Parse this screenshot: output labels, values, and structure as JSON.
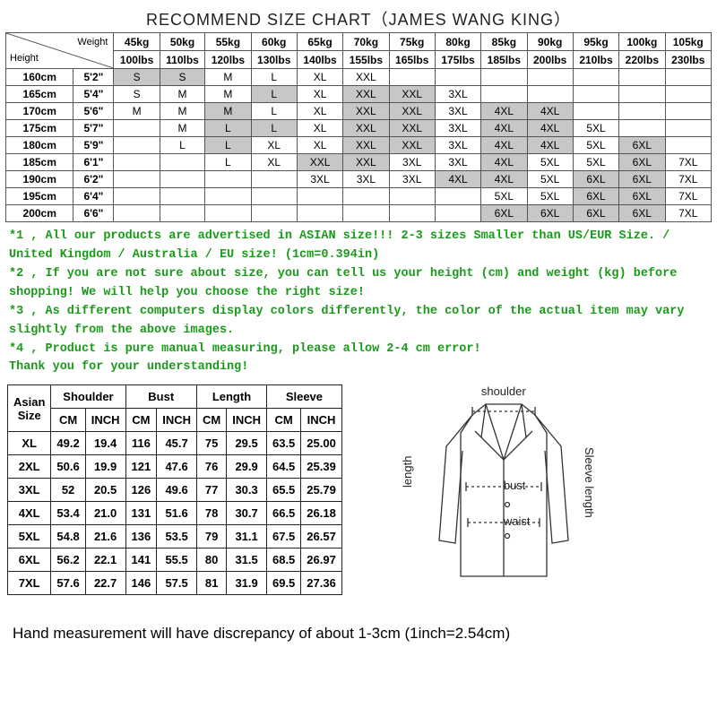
{
  "title": "RECOMMEND SIZE CHART（JAMES WANG KING）",
  "chart1": {
    "corner_top": "Weight",
    "corner_bottom": "Height",
    "weights_kg": [
      "45kg",
      "50kg",
      "55kg",
      "60kg",
      "65kg",
      "70kg",
      "75kg",
      "80kg",
      "85kg",
      "90kg",
      "95kg",
      "100kg",
      "105kg"
    ],
    "weights_lbs": [
      "100lbs",
      "110lbs",
      "120lbs",
      "130lbs",
      "140lbs",
      "155lbs",
      "165lbs",
      "175lbs",
      "185lbs",
      "200lbs",
      "210lbs",
      "220lbs",
      "230lbs"
    ],
    "heights_cm": [
      "160cm",
      "165cm",
      "170cm",
      "175cm",
      "180cm",
      "185cm",
      "190cm",
      "195cm",
      "200cm"
    ],
    "heights_ft": [
      "5'2\"",
      "5'4\"",
      "5'6\"",
      "5'7\"",
      "5'9\"",
      "6'1\"",
      "6'2\"",
      "6'4\"",
      "6'6\""
    ],
    "grid": [
      [
        "S",
        "S",
        "M",
        "L",
        "XL",
        "XXL",
        "",
        "",
        "",
        "",
        "",
        "",
        ""
      ],
      [
        "S",
        "M",
        "M",
        "L",
        "XL",
        "XXL",
        "XXL",
        "3XL",
        "",
        "",
        "",
        "",
        ""
      ],
      [
        "M",
        "M",
        "M",
        "L",
        "XL",
        "XXL",
        "XXL",
        "3XL",
        "4XL",
        "4XL",
        "",
        "",
        ""
      ],
      [
        "",
        "M",
        "L",
        "L",
        "XL",
        "XXL",
        "XXL",
        "3XL",
        "4XL",
        "4XL",
        "5XL",
        "",
        ""
      ],
      [
        "",
        "L",
        "L",
        "XL",
        "XL",
        "XXL",
        "XXL",
        "3XL",
        "4XL",
        "4XL",
        "5XL",
        "6XL",
        ""
      ],
      [
        "",
        "",
        "L",
        "XL",
        "XXL",
        "XXL",
        "3XL",
        "3XL",
        "4XL",
        "5XL",
        "5XL",
        "6XL",
        "7XL"
      ],
      [
        "",
        "",
        "",
        "",
        "3XL",
        "3XL",
        "3XL",
        "4XL",
        "4XL",
        "5XL",
        "6XL",
        "6XL",
        "7XL"
      ],
      [
        "",
        "",
        "",
        "",
        "",
        "",
        "",
        "",
        "5XL",
        "5XL",
        "6XL",
        "6XL",
        "7XL"
      ],
      [
        "",
        "",
        "",
        "",
        "",
        "",
        "",
        "",
        "6XL",
        "6XL",
        "6XL",
        "6XL",
        "7XL"
      ]
    ],
    "shaded": [
      [
        1,
        1,
        0,
        0,
        0,
        0,
        0,
        0,
        0,
        0,
        0,
        0,
        0
      ],
      [
        0,
        0,
        0,
        1,
        0,
        1,
        1,
        0,
        0,
        0,
        0,
        0,
        0
      ],
      [
        0,
        0,
        1,
        0,
        0,
        1,
        1,
        0,
        1,
        1,
        0,
        0,
        0
      ],
      [
        0,
        0,
        1,
        1,
        0,
        1,
        1,
        0,
        1,
        1,
        0,
        0,
        0
      ],
      [
        0,
        0,
        1,
        0,
        0,
        1,
        1,
        0,
        1,
        1,
        0,
        1,
        0
      ],
      [
        0,
        0,
        0,
        0,
        1,
        1,
        0,
        0,
        1,
        0,
        0,
        1,
        0
      ],
      [
        0,
        0,
        0,
        0,
        0,
        0,
        0,
        1,
        1,
        0,
        1,
        1,
        0
      ],
      [
        0,
        0,
        0,
        0,
        0,
        0,
        0,
        0,
        0,
        0,
        1,
        1,
        0
      ],
      [
        0,
        0,
        0,
        0,
        0,
        0,
        0,
        0,
        1,
        1,
        1,
        1,
        0
      ]
    ]
  },
  "notes": [
    "*1 , All our products are advertised in ASIAN size!!! 2-3 sizes Smaller than US/EUR Size. / United Kingdom / Australia / EU size! (1cm=0.394in)",
    "*2 , If you are not sure about size, you can tell us your height (cm) and weight (kg) before shopping! We will help you choose the right size!",
    "*3 , As different computers display colors differently, the color of the actual item may vary slightly from the above images.",
    "*4 , Product is pure manual measuring, please allow 2-4 cm error!",
    "Thank you for your understanding!"
  ],
  "chart2": {
    "headers_top": [
      "Asian Size",
      "Shoulder",
      "Bust",
      "Length",
      "Sleeve"
    ],
    "subheaders": [
      "CM",
      "INCH"
    ],
    "rows": [
      {
        "size": "XL",
        "vals": [
          "49.2",
          "19.4",
          "116",
          "45.7",
          "75",
          "29.5",
          "63.5",
          "25.00"
        ]
      },
      {
        "size": "2XL",
        "vals": [
          "50.6",
          "19.9",
          "121",
          "47.6",
          "76",
          "29.9",
          "64.5",
          "25.39"
        ]
      },
      {
        "size": "3XL",
        "vals": [
          "52",
          "20.5",
          "126",
          "49.6",
          "77",
          "30.3",
          "65.5",
          "25.79"
        ]
      },
      {
        "size": "4XL",
        "vals": [
          "53.4",
          "21.0",
          "131",
          "51.6",
          "78",
          "30.7",
          "66.5",
          "26.18"
        ]
      },
      {
        "size": "5XL",
        "vals": [
          "54.8",
          "21.6",
          "136",
          "53.5",
          "79",
          "31.1",
          "67.5",
          "26.57"
        ]
      },
      {
        "size": "6XL",
        "vals": [
          "56.2",
          "22.1",
          "141",
          "55.5",
          "80",
          "31.5",
          "68.5",
          "26.97"
        ]
      },
      {
        "size": "7XL",
        "vals": [
          "57.6",
          "22.7",
          "146",
          "57.5",
          "81",
          "31.9",
          "69.5",
          "27.36"
        ]
      }
    ]
  },
  "diagram_labels": {
    "shoulder": "shoulder",
    "bust": "bust",
    "waist": "waist",
    "length": "length",
    "sleeve": "Sleeve length"
  },
  "footnote": "Hand measurement will have discrepancy of about 1-3cm (1inch=2.54cm)"
}
